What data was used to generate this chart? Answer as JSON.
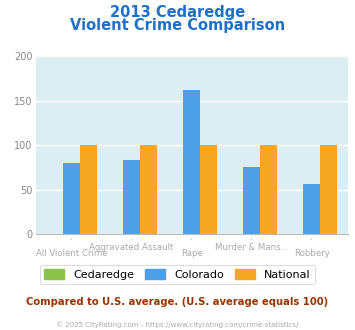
{
  "title_line1": "2013 Cedaredge",
  "title_line2": "Violent Crime Comparison",
  "series": {
    "Cedaredge": {
      "color": "#8bc34a",
      "values": [
        0,
        0,
        0,
        0,
        0
      ]
    },
    "Colorado": {
      "color": "#4d9fe8",
      "values": [
        80,
        83,
        162,
        75,
        57
      ]
    },
    "National": {
      "color": "#f5a623",
      "values": [
        100,
        100,
        100,
        100,
        100
      ]
    }
  },
  "ylim": [
    0,
    200
  ],
  "yticks": [
    0,
    50,
    100,
    150,
    200
  ],
  "plot_bg_color": "#ddeef3",
  "title_color": "#2070c8",
  "label_color": "#aaaaaa",
  "footer_text": "Compared to U.S. average. (U.S. average equals 100)",
  "footer_color": "#993300",
  "credit_text": "© 2025 CityRating.com - https://www.cityrating.com/crime-statistics/",
  "credit_color": "#aaaaaa",
  "bar_width": 0.28,
  "label1": [
    "",
    "Aggravated Assault",
    "",
    "Murder & Mans...",
    ""
  ],
  "label2": [
    "All Violent Crime",
    "",
    "Rape",
    "",
    "Robbery"
  ]
}
